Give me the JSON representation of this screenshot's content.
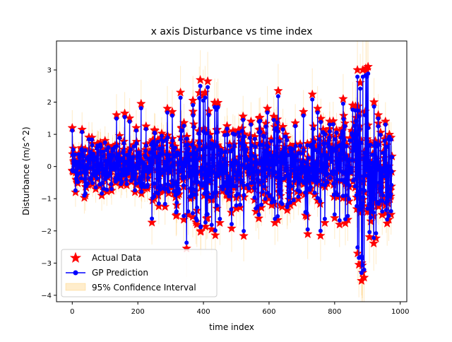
{
  "chart_data": {
    "type": "line",
    "title": "x axis Disturbance vs time index",
    "xlabel": "time index",
    "ylabel": "Disturbance (m/s^2)",
    "xlim": [
      -48,
      1020
    ],
    "ylim": [
      -4.2,
      3.9
    ],
    "x_ticks": [
      0,
      200,
      400,
      600,
      800,
      1000
    ],
    "y_ticks": [
      -4,
      -3,
      -2,
      -1,
      0,
      1,
      2,
      3
    ],
    "grid": false,
    "legend_position": "lower-left",
    "series": [
      {
        "name": "Actual Data",
        "style": "star markers",
        "color": "#ff0000"
      },
      {
        "name": "GP Prediction",
        "style": "line with circle markers",
        "color": "#0000ff"
      },
      {
        "name": "95% Confidence Interval",
        "style": "shaded band",
        "color": "#ffa500"
      }
    ],
    "n_points": 980,
    "x_range": [
      0,
      975
    ],
    "highlighted_points": [
      {
        "x": 0,
        "y": 1.2
      },
      {
        "x": 8,
        "y": 0.4
      },
      {
        "x": 15,
        "y": -0.5
      },
      {
        "x": 30,
        "y": 1.15
      },
      {
        "x": 40,
        "y": -0.9
      },
      {
        "x": 60,
        "y": 0.9
      },
      {
        "x": 75,
        "y": 0.6
      },
      {
        "x": 90,
        "y": -0.9
      },
      {
        "x": 100,
        "y": 0.8
      },
      {
        "x": 120,
        "y": -0.75
      },
      {
        "x": 135,
        "y": 1.6
      },
      {
        "x": 160,
        "y": 1.65
      },
      {
        "x": 175,
        "y": 1.5
      },
      {
        "x": 195,
        "y": 1.2
      },
      {
        "x": 210,
        "y": 1.95
      },
      {
        "x": 225,
        "y": 1.25
      },
      {
        "x": 250,
        "y": -1.0
      },
      {
        "x": 262,
        "y": -0.9
      },
      {
        "x": 283,
        "y": -1.25
      },
      {
        "x": 290,
        "y": 1.8
      },
      {
        "x": 305,
        "y": 1.7
      },
      {
        "x": 318,
        "y": -1.5
      },
      {
        "x": 330,
        "y": 2.3
      },
      {
        "x": 340,
        "y": -1.65
      },
      {
        "x": 368,
        "y": 2.05
      },
      {
        "x": 380,
        "y": -1.8
      },
      {
        "x": 392,
        "y": -2.0
      },
      {
        "x": 405,
        "y": 2.3
      },
      {
        "x": 413,
        "y": 2.65
      },
      {
        "x": 425,
        "y": -1.95
      },
      {
        "x": 440,
        "y": 1.9
      },
      {
        "x": 450,
        "y": -1.75
      },
      {
        "x": 470,
        "y": -0.85
      },
      {
        "x": 490,
        "y": 1.1
      },
      {
        "x": 500,
        "y": -1.3
      },
      {
        "x": 520,
        "y": 0.9
      },
      {
        "x": 545,
        "y": 1.4
      },
      {
        "x": 560,
        "y": -1.4
      },
      {
        "x": 570,
        "y": 1.5
      },
      {
        "x": 595,
        "y": 1.8
      },
      {
        "x": 608,
        "y": -1.2
      },
      {
        "x": 618,
        "y": -1.75
      },
      {
        "x": 628,
        "y": 2.35
      },
      {
        "x": 640,
        "y": -1.25
      },
      {
        "x": 665,
        "y": -1.2
      },
      {
        "x": 680,
        "y": 1.35
      },
      {
        "x": 705,
        "y": 1.7
      },
      {
        "x": 718,
        "y": -2.1
      },
      {
        "x": 735,
        "y": 1.25
      },
      {
        "x": 748,
        "y": 1.8
      },
      {
        "x": 757,
        "y": -2.15
      },
      {
        "x": 770,
        "y": -1.75
      },
      {
        "x": 785,
        "y": 1.4
      },
      {
        "x": 800,
        "y": -1.6
      },
      {
        "x": 815,
        "y": -1.8
      },
      {
        "x": 826,
        "y": 2.1
      },
      {
        "x": 840,
        "y": -1.65
      },
      {
        "x": 855,
        "y": 1.9
      },
      {
        "x": 870,
        "y": -2.7
      },
      {
        "x": 874,
        "y": -3.05
      },
      {
        "x": 878,
        "y": 2.6
      },
      {
        "x": 882,
        "y": -3.55
      },
      {
        "x": 886,
        "y": 3.0
      },
      {
        "x": 890,
        "y": -3.45
      },
      {
        "x": 895,
        "y": 3.05
      },
      {
        "x": 902,
        "y": 3.1
      },
      {
        "x": 910,
        "y": -1.7
      },
      {
        "x": 920,
        "y": 2.0
      },
      {
        "x": 933,
        "y": 1.6
      },
      {
        "x": 945,
        "y": -1.5
      },
      {
        "x": 955,
        "y": 1.4
      },
      {
        "x": 965,
        "y": -1.65
      },
      {
        "x": 972,
        "y": 0.9
      }
    ]
  }
}
